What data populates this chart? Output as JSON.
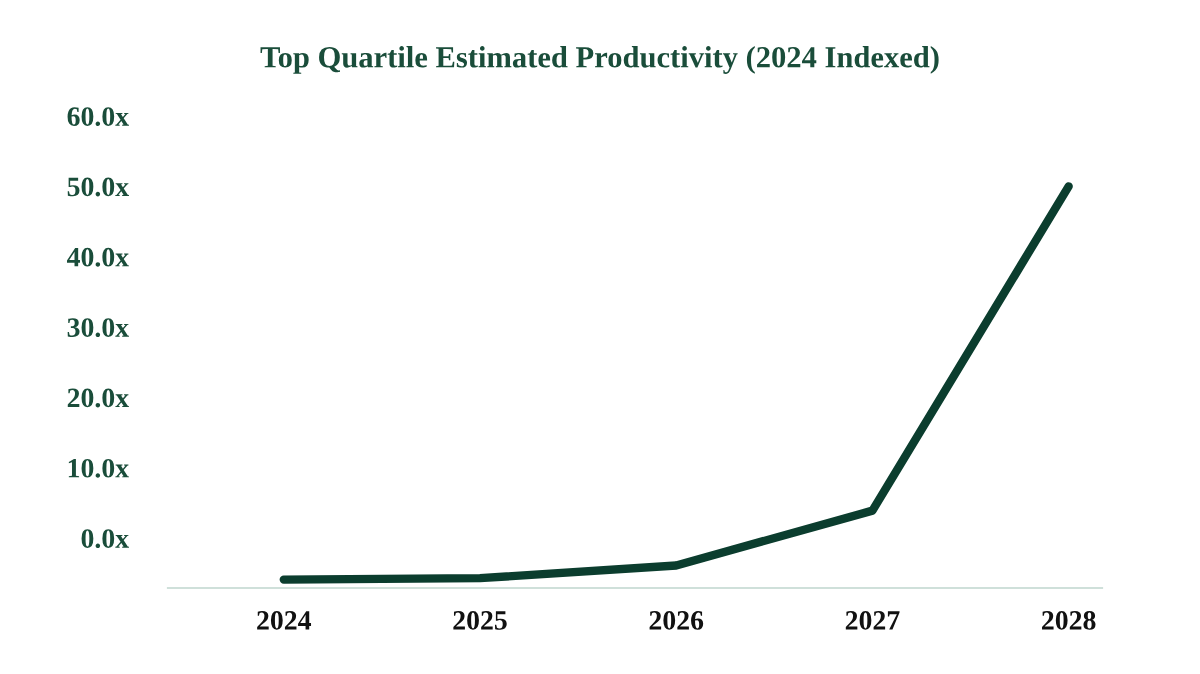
{
  "chart_data": {
    "type": "line",
    "title": "Top Quartile Estimated Productivity (2024 Indexed)",
    "categories": [
      "2024",
      "2025",
      "2026",
      "2027",
      "2028"
    ],
    "series": [
      {
        "color": "#0b3d2e",
        "values": [
          -5.9,
          -5.7,
          -3.9,
          3.9,
          50
        ]
      }
    ],
    "ylim": [
      -7.1,
      60
    ],
    "yticks": [
      {
        "value": 0,
        "label": "0.0x"
      },
      {
        "value": 10,
        "label": "10.0x"
      },
      {
        "value": 20,
        "label": "20.0x"
      },
      {
        "value": 30,
        "label": "30.0x"
      },
      {
        "value": 40,
        "label": "40.0x"
      },
      {
        "value": 50,
        "label": "50.0x"
      },
      {
        "value": 60,
        "label": "60.0x"
      }
    ],
    "grid": false,
    "marker": "none",
    "line_style": "solid"
  }
}
